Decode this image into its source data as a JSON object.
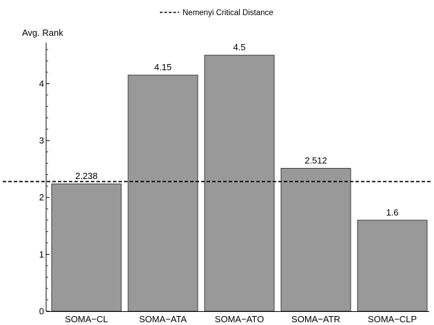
{
  "chart_data": {
    "type": "bar",
    "categories": [
      "SOMA−CL",
      "SOMA−ATA",
      "SOMA−ATO",
      "SOMA−ATR",
      "SOMA−CLP"
    ],
    "values": [
      2.238,
      4.15,
      4.5,
      2.512,
      1.6
    ],
    "data_labels": [
      "2.238",
      "4.15",
      "4.5",
      "2.512",
      "1.6"
    ],
    "ylabel": "Avg. Rank",
    "xlabel": "",
    "ylim": [
      0,
      4.72
    ],
    "yticks": [
      0,
      1,
      2,
      3,
      4
    ],
    "reference_line": {
      "name": "Nemenyi Critical Distance",
      "value": 2.28,
      "style": "dashed"
    },
    "legend_position": "top-center",
    "grid": false,
    "bar_color": "#999999",
    "bar_edge_color": "#3a3a3a"
  }
}
